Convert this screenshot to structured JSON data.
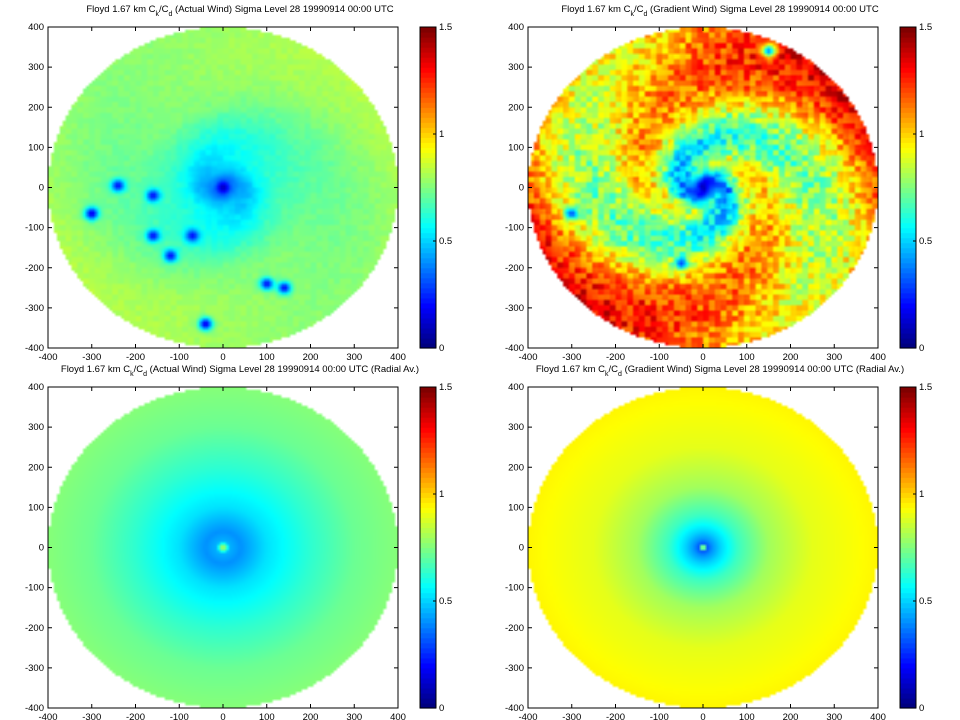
{
  "colors": {
    "colormap": "jet",
    "background": "#ffffff",
    "axis": "#000000"
  },
  "chart_data": [
    {
      "type": "heatmap",
      "title_parts": [
        "Floyd 1.67 km C",
        "k",
        "/C",
        "d",
        " (Actual Wind) Sigma Level 28 19990914 00:00 UTC"
      ],
      "xlim": [
        -400,
        400
      ],
      "ylim": [
        -400,
        400
      ],
      "xticks": [
        "-400",
        "-300",
        "-200",
        "-100",
        "0",
        "100",
        "200",
        "300",
        "400"
      ],
      "yticks": [
        "-400",
        "-300",
        "-200",
        "-100",
        "0",
        "100",
        "200",
        "300",
        "400"
      ],
      "colorbar": {
        "clim": [
          0,
          1.5
        ],
        "ticks": [
          "0",
          "0.5",
          "1",
          "1.5"
        ]
      },
      "field": {
        "r_km": [
          0,
          20,
          40,
          80,
          120,
          200,
          300,
          400
        ],
        "value": [
          0.05,
          0.35,
          0.45,
          0.55,
          0.62,
          0.72,
          0.77,
          0.8
        ],
        "spiral_amplitude": 0.05,
        "low_patches": [
          {
            "x": -300,
            "y": -65,
            "value": 0.15
          },
          {
            "x": -40,
            "y": -340,
            "value": 0.15
          },
          {
            "x": -120,
            "y": -170,
            "value": 0.2
          },
          {
            "x": -160,
            "y": -120,
            "value": 0.2
          },
          {
            "x": -70,
            "y": -120,
            "value": 0.2
          },
          {
            "x": -240,
            "y": 5,
            "value": 0.2
          },
          {
            "x": -160,
            "y": -20,
            "value": 0.2
          },
          {
            "x": 140,
            "y": -250,
            "value": 0.2
          },
          {
            "x": 100,
            "y": -240,
            "value": 0.2
          }
        ]
      },
      "grid": false
    },
    {
      "type": "heatmap",
      "title_parts": [
        "Floyd 1.67 km C",
        "k",
        "/C",
        "d",
        " (Gradient Wind) Sigma Level 28 19990914 00:00 UTC"
      ],
      "xlim": [
        -400,
        400
      ],
      "ylim": [
        -400,
        400
      ],
      "xticks": [
        "-400",
        "-300",
        "-200",
        "-100",
        "0",
        "100",
        "200",
        "300",
        "400"
      ],
      "yticks": [
        "-400",
        "-300",
        "-200",
        "-100",
        "0",
        "100",
        "200",
        "300",
        "400"
      ],
      "colorbar": {
        "clim": [
          0,
          1.5
        ],
        "ticks": [
          "0",
          "0.5",
          "1",
          "1.5"
        ]
      },
      "field": {
        "r_km": [
          0,
          20,
          40,
          80,
          150,
          250,
          330,
          400
        ],
        "value": [
          0.05,
          0.3,
          0.5,
          0.7,
          0.85,
          0.95,
          1.05,
          1.15
        ],
        "spiral_amplitude": 0.35,
        "low_patches": [
          {
            "x": -300,
            "y": -65,
            "value": 0.3
          },
          {
            "x": 150,
            "y": 340,
            "value": 0.4
          },
          {
            "x": -50,
            "y": -190,
            "value": 0.3
          }
        ]
      },
      "grid": false
    },
    {
      "type": "heatmap",
      "title_parts": [
        "Floyd 1.67 km C",
        "k",
        "/C",
        "d",
        " (Actual Wind) Sigma Level 28 19990914 00:00 UTC (Radial Av.)"
      ],
      "xlim": [
        -400,
        400
      ],
      "ylim": [
        -400,
        400
      ],
      "xticks": [
        "-400",
        "-300",
        "-200",
        "-100",
        "0",
        "100",
        "200",
        "300",
        "400"
      ],
      "yticks": [
        "-400",
        "-300",
        "-200",
        "-100",
        "0",
        "100",
        "200",
        "300",
        "400"
      ],
      "colorbar": {
        "clim": [
          0,
          1.5
        ],
        "ticks": [
          "0",
          "0.5",
          "1",
          "1.5"
        ]
      },
      "field": {
        "r_km": [
          0,
          15,
          40,
          100,
          200,
          300,
          400
        ],
        "value": [
          0.9,
          0.45,
          0.4,
          0.52,
          0.63,
          0.72,
          0.76
        ],
        "spiral_amplitude": 0,
        "low_patches": []
      },
      "grid": false
    },
    {
      "type": "heatmap",
      "title_parts": [
        "Floyd 1.67 km C",
        "k",
        "/C",
        "d",
        " (Gradient Wind) Sigma Level 28 19990914 00:00 UTC (Radial Av.)"
      ],
      "xlim": [
        -400,
        400
      ],
      "ylim": [
        -400,
        400
      ],
      "xticks": [
        "-400",
        "-300",
        "-200",
        "-100",
        "0",
        "100",
        "200",
        "300",
        "400"
      ],
      "yticks": [
        "-400",
        "-300",
        "-200",
        "-100",
        "0",
        "100",
        "200",
        "300",
        "400"
      ],
      "colorbar": {
        "clim": [
          0,
          1.5
        ],
        "ticks": [
          "0",
          "0.5",
          "1",
          "1.5"
        ]
      },
      "field": {
        "r_km": [
          0,
          8,
          20,
          40,
          80,
          150,
          250,
          400
        ],
        "value": [
          1.3,
          0.3,
          0.4,
          0.5,
          0.65,
          0.8,
          0.9,
          0.95
        ],
        "spiral_amplitude": 0,
        "low_patches": []
      },
      "grid": false
    }
  ]
}
